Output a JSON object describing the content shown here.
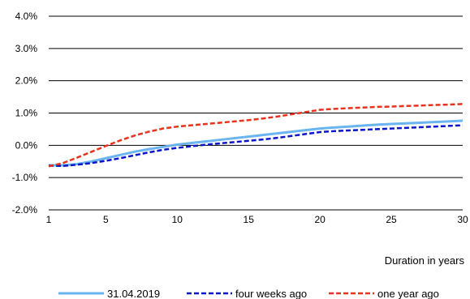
{
  "chart_data": {
    "type": "line",
    "title": "",
    "xlabel": "Duration in years",
    "ylabel": "",
    "x_ticks": [
      "1",
      "5",
      "10",
      "15",
      "20",
      "25",
      "30"
    ],
    "y_ticks": [
      "-2.0%",
      "-1.0%",
      "0.0%",
      "1.0%",
      "2.0%",
      "3.0%",
      "4.0%"
    ],
    "xlim": [
      1,
      30
    ],
    "ylim": [
      -2.0,
      4.0
    ],
    "y_unit": "%",
    "grid": "horizontal",
    "legend_position": "bottom",
    "x": [
      1,
      2,
      3,
      4,
      5,
      6,
      7,
      8,
      9,
      10,
      11,
      12,
      13,
      14,
      15,
      16,
      17,
      18,
      19,
      20,
      21,
      22,
      23,
      24,
      25,
      26,
      27,
      28,
      29,
      30
    ],
    "series": [
      {
        "name": "31.04.2019",
        "color": "#6ab4f0",
        "style": "solid",
        "values": [
          -0.62,
          -0.62,
          -0.58,
          -0.5,
          -0.4,
          -0.3,
          -0.2,
          -0.12,
          -0.05,
          0.02,
          0.07,
          0.12,
          0.17,
          0.22,
          0.27,
          0.32,
          0.37,
          0.42,
          0.47,
          0.52,
          0.55,
          0.58,
          0.61,
          0.64,
          0.66,
          0.68,
          0.7,
          0.72,
          0.74,
          0.76
        ]
      },
      {
        "name": "four weeks ago",
        "color": "#0a14c8",
        "style": "dashed",
        "values": [
          -0.63,
          -0.64,
          -0.6,
          -0.55,
          -0.48,
          -0.4,
          -0.31,
          -0.22,
          -0.14,
          -0.08,
          -0.03,
          0.02,
          0.06,
          0.1,
          0.14,
          0.18,
          0.23,
          0.29,
          0.35,
          0.41,
          0.44,
          0.46,
          0.48,
          0.5,
          0.52,
          0.54,
          0.56,
          0.58,
          0.6,
          0.62
        ]
      },
      {
        "name": "one year ago",
        "color": "#e8321e",
        "style": "dashed",
        "values": [
          -0.65,
          -0.55,
          -0.38,
          -0.2,
          -0.02,
          0.15,
          0.3,
          0.42,
          0.52,
          0.58,
          0.62,
          0.66,
          0.7,
          0.74,
          0.78,
          0.83,
          0.89,
          0.96,
          1.03,
          1.1,
          1.13,
          1.15,
          1.17,
          1.19,
          1.2,
          1.22,
          1.23,
          1.25,
          1.26,
          1.28
        ]
      }
    ]
  }
}
